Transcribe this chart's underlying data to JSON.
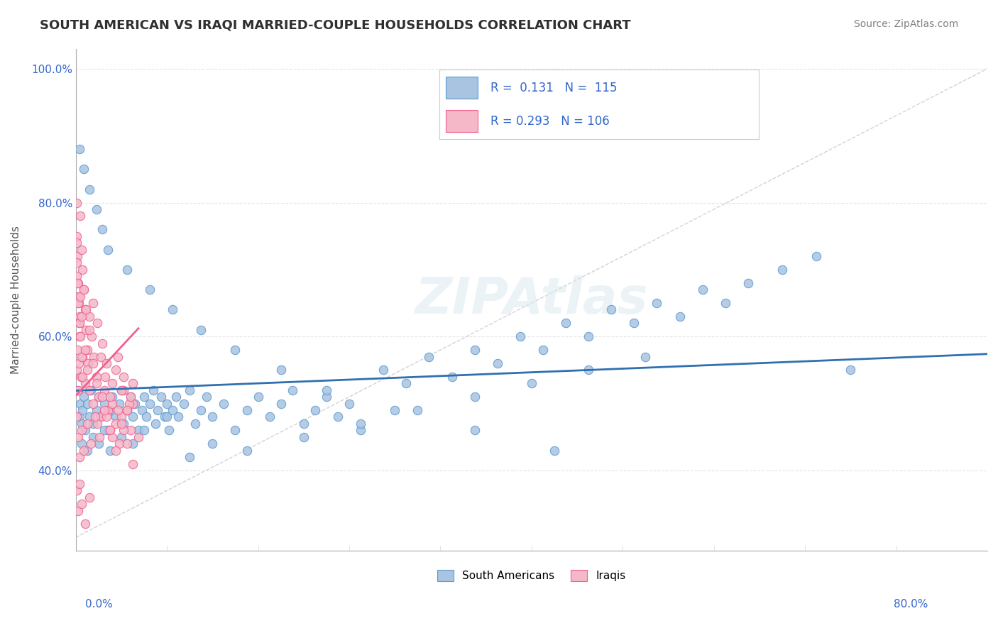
{
  "title": "SOUTH AMERICAN VS IRAQI MARRIED-COUPLE HOUSEHOLDS CORRELATION CHART",
  "source_text": "Source: ZipAtlas.com",
  "ylabel": "Married-couple Households",
  "legend_sa": "South Americans",
  "legend_iq": "Iraqis",
  "blue_color": "#a8c4e0",
  "pink_color": "#f4b8c8",
  "blue_edge": "#5b9bd5",
  "pink_edge": "#f06090",
  "blue_line_color": "#3070b0",
  "pink_line_color": "#e05070",
  "diag_line_color": "#c0c0c0",
  "title_color": "#303030",
  "source_color": "#808080",
  "legend_text_color": "#3366cc",
  "background_color": "#ffffff",
  "grid_color": "#e0e0e0",
  "xmin": 0.0,
  "xmax": 0.8,
  "ymin": 0.28,
  "ymax": 1.03,
  "sa_x": [
    0.002,
    0.003,
    0.004,
    0.005,
    0.006,
    0.007,
    0.008,
    0.01,
    0.012,
    0.013,
    0.015,
    0.018,
    0.02,
    0.022,
    0.025,
    0.028,
    0.03,
    0.032,
    0.035,
    0.038,
    0.04,
    0.042,
    0.045,
    0.048,
    0.05,
    0.052,
    0.055,
    0.058,
    0.06,
    0.062,
    0.065,
    0.068,
    0.07,
    0.072,
    0.075,
    0.078,
    0.08,
    0.082,
    0.085,
    0.088,
    0.09,
    0.095,
    0.1,
    0.105,
    0.11,
    0.115,
    0.12,
    0.13,
    0.14,
    0.15,
    0.16,
    0.17,
    0.18,
    0.19,
    0.2,
    0.21,
    0.22,
    0.23,
    0.24,
    0.25,
    0.27,
    0.29,
    0.31,
    0.33,
    0.35,
    0.37,
    0.39,
    0.41,
    0.43,
    0.45,
    0.47,
    0.49,
    0.51,
    0.53,
    0.55,
    0.57,
    0.59,
    0.62,
    0.65,
    0.68,
    0.005,
    0.01,
    0.015,
    0.02,
    0.025,
    0.03,
    0.04,
    0.05,
    0.06,
    0.08,
    0.1,
    0.12,
    0.15,
    0.2,
    0.25,
    0.3,
    0.35,
    0.4,
    0.45,
    0.5,
    0.003,
    0.007,
    0.012,
    0.018,
    0.023,
    0.028,
    0.045,
    0.065,
    0.085,
    0.11,
    0.14,
    0.18,
    0.22,
    0.28,
    0.35,
    0.42
  ],
  "sa_y": [
    0.52,
    0.48,
    0.5,
    0.47,
    0.49,
    0.51,
    0.46,
    0.5,
    0.48,
    0.52,
    0.47,
    0.49,
    0.51,
    0.48,
    0.5,
    0.46,
    0.49,
    0.51,
    0.48,
    0.5,
    0.52,
    0.47,
    0.49,
    0.51,
    0.48,
    0.5,
    0.46,
    0.49,
    0.51,
    0.48,
    0.5,
    0.52,
    0.47,
    0.49,
    0.51,
    0.48,
    0.5,
    0.46,
    0.49,
    0.51,
    0.48,
    0.5,
    0.52,
    0.47,
    0.49,
    0.51,
    0.48,
    0.5,
    0.46,
    0.49,
    0.51,
    0.48,
    0.5,
    0.52,
    0.47,
    0.49,
    0.51,
    0.48,
    0.5,
    0.46,
    0.55,
    0.53,
    0.57,
    0.54,
    0.58,
    0.56,
    0.6,
    0.58,
    0.62,
    0.6,
    0.64,
    0.62,
    0.65,
    0.63,
    0.67,
    0.65,
    0.68,
    0.7,
    0.72,
    0.55,
    0.44,
    0.43,
    0.45,
    0.44,
    0.46,
    0.43,
    0.45,
    0.44,
    0.46,
    0.48,
    0.42,
    0.44,
    0.43,
    0.45,
    0.47,
    0.49,
    0.51,
    0.53,
    0.55,
    0.57,
    0.88,
    0.85,
    0.82,
    0.79,
    0.76,
    0.73,
    0.7,
    0.67,
    0.64,
    0.61,
    0.58,
    0.55,
    0.52,
    0.49,
    0.46,
    0.43
  ],
  "iq_x": [
    0.0005,
    0.001,
    0.0015,
    0.002,
    0.0025,
    0.003,
    0.004,
    0.005,
    0.006,
    0.007,
    0.008,
    0.009,
    0.01,
    0.012,
    0.014,
    0.016,
    0.018,
    0.02,
    0.022,
    0.025,
    0.028,
    0.03,
    0.032,
    0.035,
    0.038,
    0.04,
    0.042,
    0.045,
    0.048,
    0.05,
    0.0008,
    0.0012,
    0.0018,
    0.0025,
    0.0035,
    0.0045,
    0.006,
    0.008,
    0.011,
    0.015,
    0.019,
    0.023,
    0.027,
    0.032,
    0.037,
    0.042,
    0.047,
    0.001,
    0.002,
    0.003,
    0.004,
    0.005,
    0.006,
    0.008,
    0.01,
    0.012,
    0.015,
    0.018,
    0.022,
    0.026,
    0.03,
    0.035,
    0.04,
    0.045,
    0.05,
    0.0005,
    0.001,
    0.0015,
    0.002,
    0.003,
    0.004,
    0.005,
    0.007,
    0.009,
    0.012,
    0.015,
    0.019,
    0.023,
    0.027,
    0.032,
    0.037,
    0.042,
    0.048,
    0.001,
    0.002,
    0.003,
    0.005,
    0.007,
    0.01,
    0.013,
    0.017,
    0.021,
    0.025,
    0.03,
    0.035,
    0.04,
    0.045,
    0.05,
    0.055,
    0.001,
    0.002,
    0.003,
    0.005,
    0.008,
    0.012
  ],
  "iq_y": [
    0.8,
    0.75,
    0.72,
    0.68,
    0.65,
    0.62,
    0.78,
    0.73,
    0.7,
    0.67,
    0.64,
    0.61,
    0.58,
    0.63,
    0.6,
    0.57,
    0.54,
    0.51,
    0.48,
    0.52,
    0.49,
    0.46,
    0.5,
    0.47,
    0.44,
    0.48,
    0.52,
    0.49,
    0.46,
    0.5,
    0.55,
    0.58,
    0.52,
    0.56,
    0.6,
    0.54,
    0.57,
    0.53,
    0.56,
    0.5,
    0.47,
    0.51,
    0.48,
    0.45,
    0.49,
    0.46,
    0.5,
    0.69,
    0.66,
    0.63,
    0.6,
    0.57,
    0.54,
    0.58,
    0.55,
    0.52,
    0.56,
    0.53,
    0.57,
    0.54,
    0.51,
    0.55,
    0.52,
    0.49,
    0.53,
    0.74,
    0.71,
    0.68,
    0.65,
    0.62,
    0.66,
    0.63,
    0.67,
    0.64,
    0.61,
    0.65,
    0.62,
    0.59,
    0.56,
    0.53,
    0.57,
    0.54,
    0.51,
    0.48,
    0.45,
    0.42,
    0.46,
    0.43,
    0.47,
    0.44,
    0.48,
    0.45,
    0.49,
    0.46,
    0.43,
    0.47,
    0.44,
    0.41,
    0.45,
    0.37,
    0.34,
    0.38,
    0.35,
    0.32,
    0.36
  ]
}
